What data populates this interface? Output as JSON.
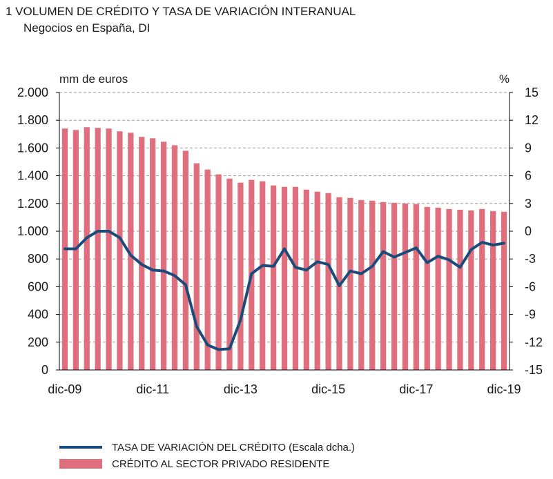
{
  "title": "1  VOLUMEN DE CRÉDITO Y TASA DE VARIACIÓN INTERANUAL",
  "subtitle": "Negocios en España, DI",
  "colors": {
    "bar": "#e06f7e",
    "line": "#1b4b7b",
    "grid": "#9a9a9a",
    "axis": "#000000"
  },
  "legend": [
    {
      "label": "TASA DE VARIACIÓN DEL CRÉDITO (Escala dcha.)",
      "kind": "line"
    },
    {
      "label": "CRÉDITO AL SECTOR PRIVADO RESIDENTE",
      "kind": "bar"
    }
  ],
  "chart_data": {
    "type": "bar+line",
    "left_axis": {
      "unit_label": "mm de euros",
      "ylim": [
        0,
        2000
      ],
      "ticks": [
        "2.000",
        "1.800",
        "1.600",
        "1.400",
        "1.200",
        "1.000",
        "800",
        "600",
        "400",
        "200",
        "0"
      ],
      "tick_values": [
        2000,
        1800,
        1600,
        1400,
        1200,
        1000,
        800,
        600,
        400,
        200,
        0
      ]
    },
    "right_axis": {
      "unit_label": "%",
      "ylim": [
        -15,
        15
      ],
      "ticks": [
        "15",
        "12",
        "9",
        "6",
        "3",
        "0",
        "-3",
        "-6",
        "-9",
        "-12",
        "-15"
      ],
      "tick_values": [
        15,
        12,
        9,
        6,
        3,
        0,
        -3,
        -6,
        -9,
        -12,
        -15
      ]
    },
    "x_tick_labels": [
      "dic-09",
      "dic-11",
      "dic-13",
      "dic-15",
      "dic-17",
      "dic-19"
    ],
    "x_tick_positions": [
      0,
      8,
      16,
      24,
      32,
      40
    ],
    "grid": true,
    "series": [
      {
        "name": "CRÉDITO AL SECTOR PRIVADO RESIDENTE",
        "type": "bar",
        "axis": "left",
        "values": [
          1740,
          1730,
          1750,
          1745,
          1740,
          1720,
          1710,
          1680,
          1670,
          1645,
          1620,
          1580,
          1490,
          1445,
          1410,
          1380,
          1350,
          1370,
          1360,
          1330,
          1320,
          1320,
          1300,
          1285,
          1275,
          1245,
          1240,
          1225,
          1220,
          1210,
          1205,
          1200,
          1195,
          1175,
          1170,
          1160,
          1155,
          1150,
          1160,
          1145,
          1140
        ]
      },
      {
        "name": "TASA DE VARIACIÓN DEL CRÉDITO",
        "type": "line",
        "axis": "right",
        "values": [
          -1.9,
          -1.9,
          -0.7,
          0.0,
          0.0,
          -0.7,
          -2.6,
          -3.6,
          -4.2,
          -4.3,
          -4.8,
          -5.8,
          -10.3,
          -12.3,
          -12.8,
          -12.7,
          -9.6,
          -4.6,
          -3.7,
          -3.8,
          -1.9,
          -3.9,
          -4.2,
          -3.3,
          -3.6,
          -5.9,
          -4.3,
          -4.6,
          -3.8,
          -2.2,
          -2.8,
          -2.3,
          -1.8,
          -3.4,
          -2.7,
          -3.1,
          -3.9,
          -2.0,
          -1.2,
          -1.5,
          -1.3
        ]
      }
    ]
  }
}
